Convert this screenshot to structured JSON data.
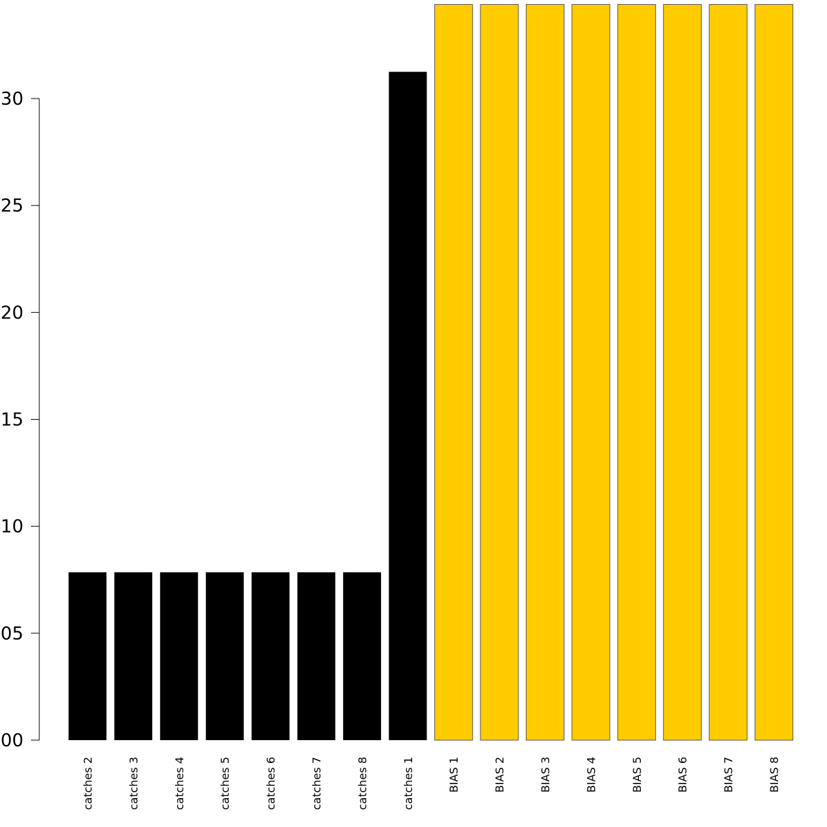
{
  "chart_data": {
    "type": "bar",
    "title": "",
    "xlabel": "",
    "ylabel": "",
    "y_tick_labels": [
      "00",
      "05",
      "10",
      "15",
      "20",
      "25",
      "30"
    ],
    "ylim": [
      0,
      0.344
    ],
    "grid": false,
    "legend": "none",
    "categories": [
      "catches 2",
      "catches 3",
      "catches 4",
      "catches 5",
      "catches 6",
      "catches 7",
      "catches 8",
      "catches 1",
      "BIAS 1",
      "BIAS 2",
      "BIAS 3",
      "BIAS 4",
      "BIAS 5",
      "BIAS 6",
      "BIAS 7",
      "BIAS 8"
    ],
    "values": [
      0.0785,
      0.0785,
      0.0785,
      0.0785,
      0.0785,
      0.0785,
      0.0785,
      0.3125,
      0.344,
      0.344,
      0.344,
      0.344,
      0.344,
      0.344,
      0.344,
      0.344
    ],
    "colors": [
      "#000000",
      "#000000",
      "#000000",
      "#000000",
      "#000000",
      "#000000",
      "#000000",
      "#000000",
      "#FFCC00",
      "#FFCC00",
      "#FFCC00",
      "#FFCC00",
      "#FFCC00",
      "#FFCC00",
      "#FFCC00",
      "#FFCC00"
    ]
  }
}
